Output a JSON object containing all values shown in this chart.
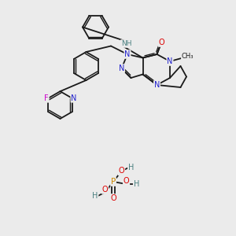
{
  "bg_color": "#ebebeb",
  "bond_color": "#1a1a1a",
  "atom_colors": {
    "N": "#2020cc",
    "O": "#dd0000",
    "F": "#cc00cc",
    "P": "#cc8800",
    "H": "#4a8080",
    "C": "#1a1a1a",
    "NH": "#4a8080"
  },
  "font_size": 7.0,
  "bond_width": 1.3
}
